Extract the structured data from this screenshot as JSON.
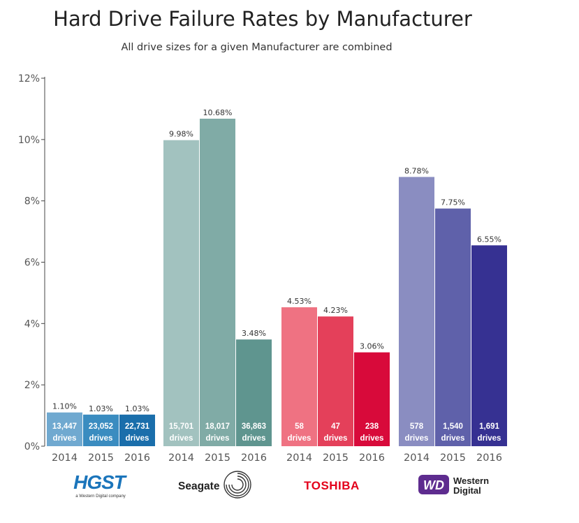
{
  "chart_data": {
    "type": "bar",
    "title": "Hard Drive Failure Rates by Manufacturer",
    "subtitle": "All drive sizes for a given Manufacturer are combined",
    "xlabel": "",
    "ylabel": "",
    "ylim": [
      0,
      12
    ],
    "yticks": [
      "0%",
      "2%",
      "4%",
      "6%",
      "8%",
      "10%",
      "12%"
    ],
    "grid": false,
    "legend": "none",
    "groups": [
      {
        "manufacturer": "HGST",
        "logo_text": "HGST",
        "logo_subtext": "a Western Digital company",
        "bars": [
          {
            "year": "2014",
            "value": 1.1,
            "label": "1.10%",
            "drives": "13,447",
            "unit": "drives",
            "color": "#70a9d0"
          },
          {
            "year": "2015",
            "value": 1.03,
            "label": "1.03%",
            "drives": "23,052",
            "unit": "drives",
            "color": "#3a8cc0"
          },
          {
            "year": "2016",
            "value": 1.03,
            "label": "1.03%",
            "drives": "22,731",
            "unit": "drives",
            "color": "#1a6eab"
          }
        ]
      },
      {
        "manufacturer": "Seagate",
        "logo_text": "Seagate",
        "bars": [
          {
            "year": "2014",
            "value": 9.98,
            "label": "9.98%",
            "drives": "15,701",
            "unit": "drives",
            "color": "#a2c2bf"
          },
          {
            "year": "2015",
            "value": 10.68,
            "label": "10.68%",
            "drives": "18,017",
            "unit": "drives",
            "color": "#80aba6"
          },
          {
            "year": "2016",
            "value": 3.48,
            "label": "3.48%",
            "drives": "36,863",
            "unit": "drives",
            "color": "#5f958f"
          }
        ]
      },
      {
        "manufacturer": "Toshiba",
        "logo_text": "TOSHIBA",
        "bars": [
          {
            "year": "2014",
            "value": 4.53,
            "label": "4.53%",
            "drives": "58",
            "unit": "drives",
            "color": "#ef7282"
          },
          {
            "year": "2015",
            "value": 4.23,
            "label": "4.23%",
            "drives": "47",
            "unit": "drives",
            "color": "#e4405a"
          },
          {
            "year": "2016",
            "value": 3.06,
            "label": "3.06%",
            "drives": "238",
            "unit": "drives",
            "color": "#d80a3a"
          }
        ]
      },
      {
        "manufacturer": "Western Digital",
        "logo_text": "Western Digital",
        "logo_mark": "WD",
        "bars": [
          {
            "year": "2014",
            "value": 8.78,
            "label": "8.78%",
            "drives": "578",
            "unit": "drives",
            "color": "#8a8dc1"
          },
          {
            "year": "2015",
            "value": 7.75,
            "label": "7.75%",
            "drives": "1,540",
            "unit": "drives",
            "color": "#5f61aa"
          },
          {
            "year": "2016",
            "value": 6.55,
            "label": "6.55%",
            "drives": "1,691",
            "unit": "drives",
            "color": "#363192"
          }
        ]
      }
    ]
  }
}
